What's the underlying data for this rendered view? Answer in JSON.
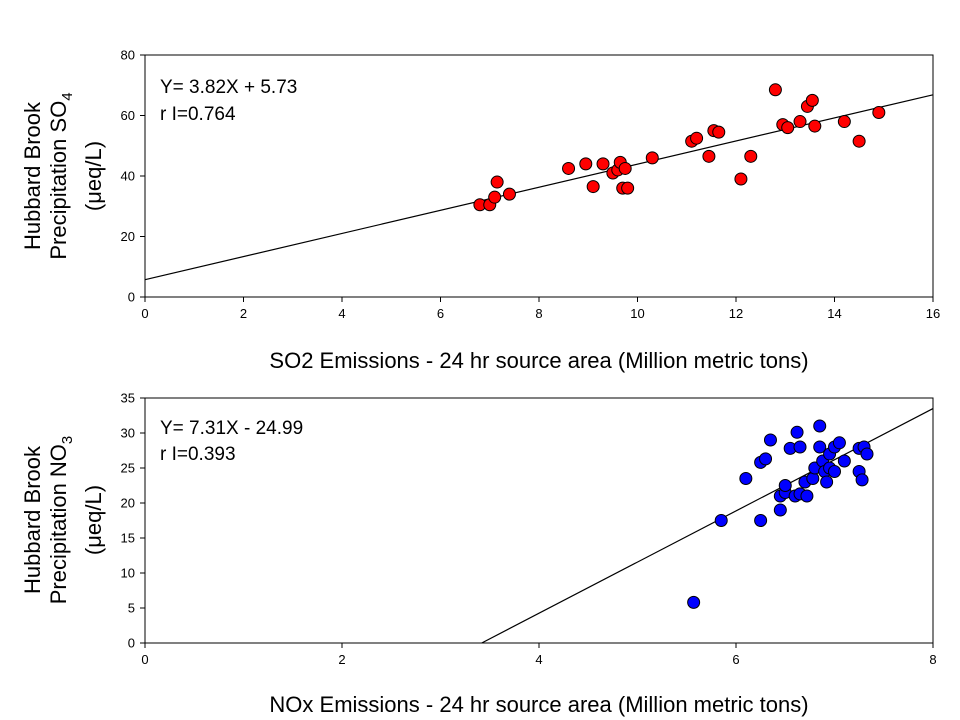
{
  "chart_data": [
    {
      "type": "scatter",
      "xlabel": "SO2 Emissions - 24 hr source area (Million metric tons)",
      "ylabel_line1": "Hubbard Brook",
      "ylabel_line2_main": "Precipitation SO",
      "ylabel_line2_sub": "4",
      "ylabel_line3": "(μeq/L)",
      "xlim": [
        0,
        16
      ],
      "ylim": [
        0,
        80
      ],
      "xticks": [
        0,
        2,
        4,
        6,
        8,
        10,
        12,
        14,
        16
      ],
      "yticks": [
        0,
        20,
        40,
        60,
        80
      ],
      "annotation_equation": "Y= 3.82X + 5.73",
      "annotation_r": "r I=0.764",
      "regression": {
        "slope": 3.82,
        "intercept": 5.73
      },
      "grid": false,
      "marker_color": "#ff0000",
      "points": [
        [
          6.8,
          30.5
        ],
        [
          7.0,
          30.5
        ],
        [
          7.1,
          33.0
        ],
        [
          7.15,
          38.0
        ],
        [
          7.4,
          34.0
        ],
        [
          8.6,
          42.5
        ],
        [
          8.95,
          44.0
        ],
        [
          9.1,
          36.5
        ],
        [
          9.3,
          44.0
        ],
        [
          9.5,
          41.0
        ],
        [
          9.6,
          42.0
        ],
        [
          9.65,
          44.5
        ],
        [
          9.7,
          36.0
        ],
        [
          9.75,
          42.5
        ],
        [
          9.8,
          36.0
        ],
        [
          10.3,
          46.0
        ],
        [
          11.1,
          51.5
        ],
        [
          11.2,
          52.5
        ],
        [
          11.45,
          46.5
        ],
        [
          11.55,
          55.0
        ],
        [
          11.65,
          54.5
        ],
        [
          12.1,
          39.0
        ],
        [
          12.3,
          46.5
        ],
        [
          12.8,
          68.5
        ],
        [
          12.95,
          57.0
        ],
        [
          13.05,
          56.0
        ],
        [
          13.3,
          58.0
        ],
        [
          13.45,
          63.0
        ],
        [
          13.55,
          65.0
        ],
        [
          13.6,
          56.5
        ],
        [
          14.2,
          58.0
        ],
        [
          14.5,
          51.5
        ],
        [
          14.9,
          61.0
        ]
      ]
    },
    {
      "type": "scatter",
      "xlabel": "NOx Emissions - 24 hr source area (Million metric tons)",
      "ylabel_line1": "Hubbard Brook",
      "ylabel_line2_main": "Precipitation NO",
      "ylabel_line2_sub": "3",
      "ylabel_line3": "(μeq/L)",
      "xlim": [
        0,
        8
      ],
      "ylim": [
        0,
        35
      ],
      "xticks": [
        0,
        2,
        4,
        6,
        8
      ],
      "yticks": [
        0,
        5,
        10,
        15,
        20,
        25,
        30,
        35
      ],
      "annotation_equation": "Y= 7.31X - 24.99",
      "annotation_r": "r I=0.393",
      "regression": {
        "slope": 7.31,
        "intercept": -24.99
      },
      "grid": false,
      "marker_color": "#0000ff",
      "points": [
        [
          5.57,
          5.8
        ],
        [
          5.85,
          17.5
        ],
        [
          6.1,
          23.5
        ],
        [
          6.25,
          17.5
        ],
        [
          6.25,
          25.8
        ],
        [
          6.3,
          26.3
        ],
        [
          6.35,
          29.0
        ],
        [
          6.45,
          19.0
        ],
        [
          6.45,
          21.0
        ],
        [
          6.5,
          21.5
        ],
        [
          6.5,
          22.5
        ],
        [
          6.55,
          27.8
        ],
        [
          6.6,
          21.0
        ],
        [
          6.62,
          30.1
        ],
        [
          6.65,
          21.3
        ],
        [
          6.65,
          28.0
        ],
        [
          6.7,
          23.0
        ],
        [
          6.72,
          21.0
        ],
        [
          6.78,
          23.5
        ],
        [
          6.8,
          25.0
        ],
        [
          6.85,
          31.0
        ],
        [
          6.85,
          28.0
        ],
        [
          6.88,
          26.0
        ],
        [
          6.9,
          24.5
        ],
        [
          6.92,
          23.0
        ],
        [
          6.95,
          27.0
        ],
        [
          6.95,
          25.0
        ],
        [
          7.0,
          28.0
        ],
        [
          7.0,
          24.5
        ],
        [
          7.05,
          28.6
        ],
        [
          7.1,
          26.0
        ],
        [
          7.25,
          27.8
        ],
        [
          7.25,
          24.5
        ],
        [
          7.28,
          23.3
        ],
        [
          7.3,
          28.0
        ],
        [
          7.33,
          27.0
        ]
      ]
    }
  ]
}
